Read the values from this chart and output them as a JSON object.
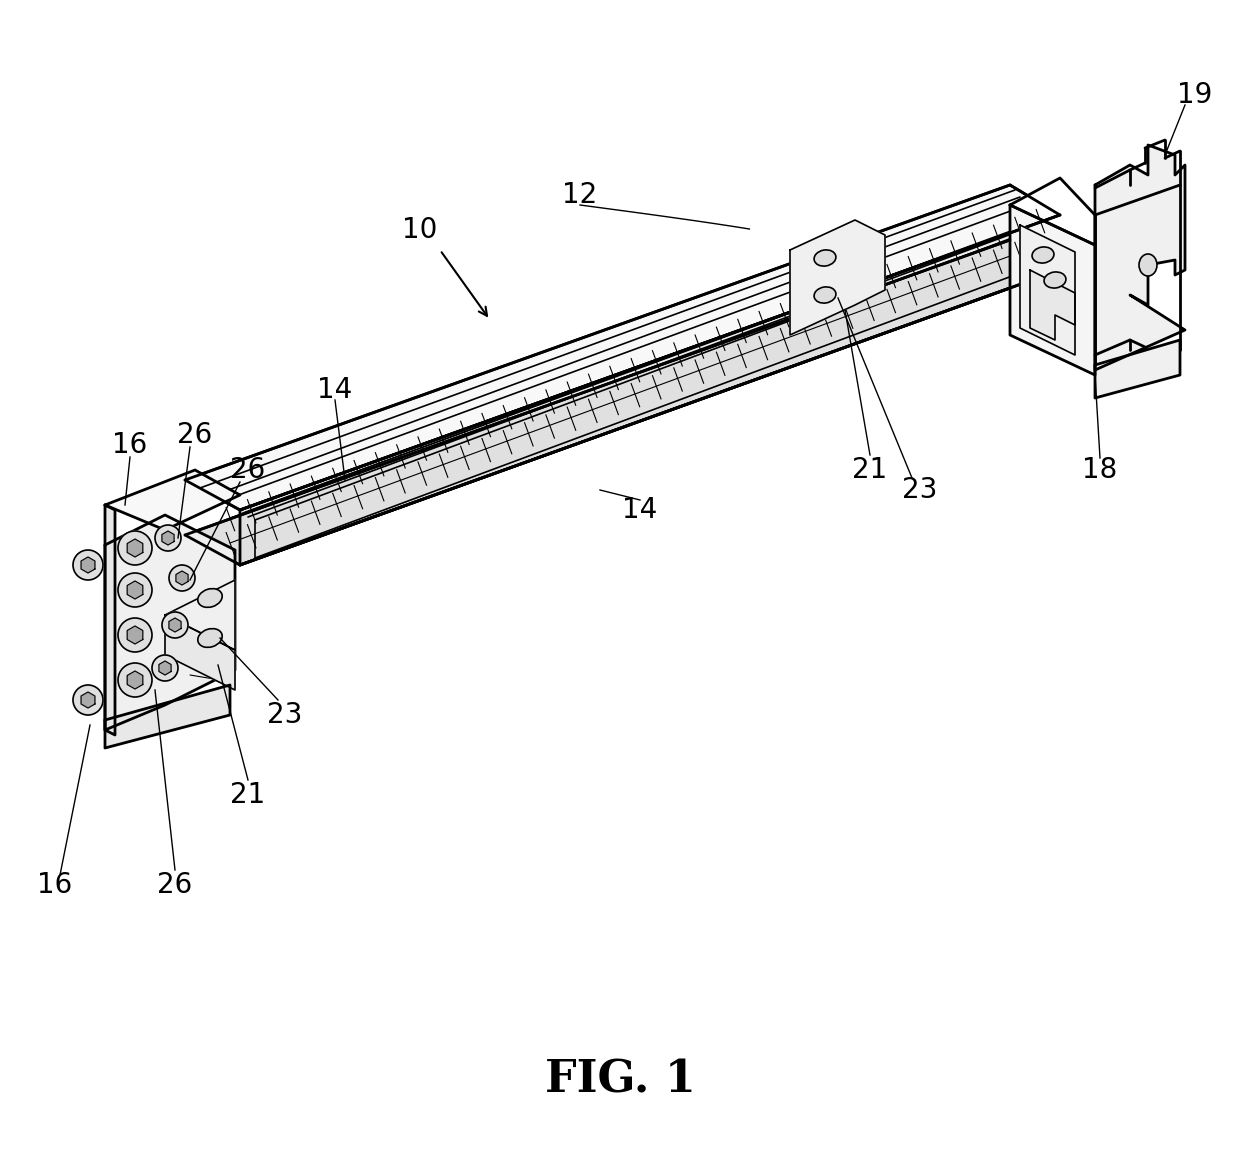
{
  "title": "FIG. 1",
  "title_fontsize": 32,
  "title_fontweight": "bold",
  "bg": "#ffffff",
  "lc": "#000000",
  "fig_width": 12.4,
  "fig_height": 11.6,
  "dpi": 100
}
